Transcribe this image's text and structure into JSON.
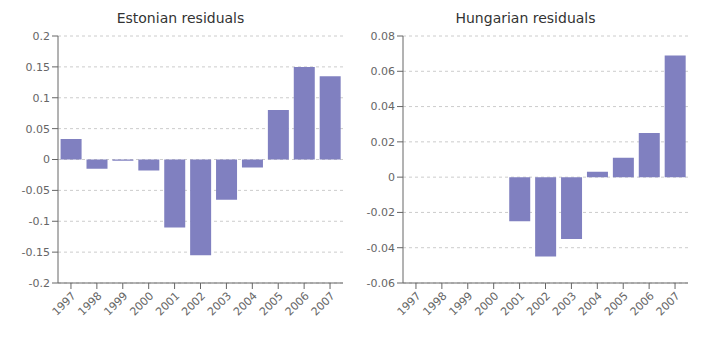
{
  "chart_data": [
    {
      "type": "bar",
      "title": "Estonian residuals",
      "categories": [
        "1997",
        "1998",
        "1999",
        "2000",
        "2001",
        "2002",
        "2003",
        "2004",
        "2005",
        "2006",
        "2007"
      ],
      "values": [
        0.033,
        -0.015,
        -0.002,
        -0.018,
        -0.11,
        -0.155,
        -0.065,
        -0.013,
        0.08,
        0.15,
        0.135
      ],
      "color": "#8080c0",
      "ylim": [
        -0.2,
        0.2
      ],
      "yticks": [
        -0.2,
        -0.15,
        -0.1,
        -0.05,
        0,
        0.05,
        0.1,
        0.15,
        0.2
      ],
      "grid": true
    },
    {
      "type": "bar",
      "title": "Hungarian residuals",
      "categories": [
        "1997",
        "1998",
        "1999",
        "2000",
        "2001",
        "2002",
        "2003",
        "2004",
        "2005",
        "2006",
        "2007"
      ],
      "values": [
        0.0,
        0.0,
        0.0,
        0.0,
        -0.025,
        -0.045,
        -0.035,
        0.003,
        0.011,
        0.025,
        0.069
      ],
      "color": "#8080c0",
      "ylim": [
        -0.06,
        0.08
      ],
      "yticks": [
        -0.06,
        -0.04,
        -0.02,
        0,
        0.02,
        0.04,
        0.06,
        0.08
      ],
      "grid": true
    }
  ]
}
